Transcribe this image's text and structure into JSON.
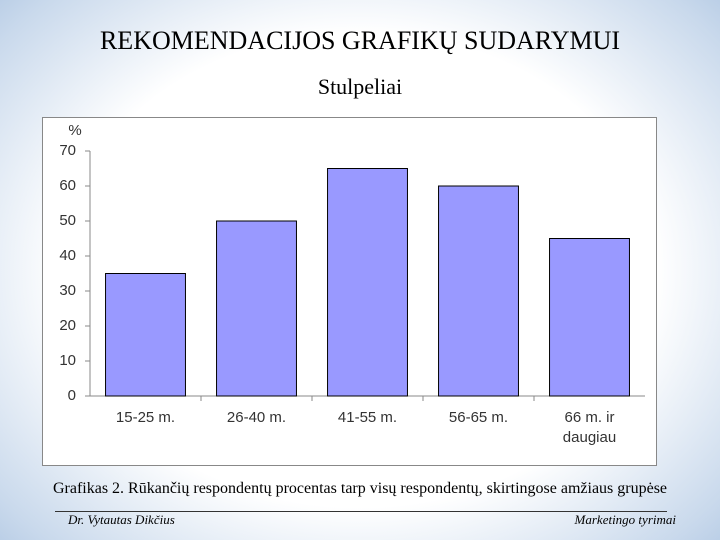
{
  "header": {
    "title": "REKOMENDACIJOS GRAFIKŲ SUDARYMUI",
    "subtitle": "Stulpeliai"
  },
  "chart_data": {
    "type": "bar",
    "y_label": "%",
    "categories": [
      "15-25 m.",
      "26-40 m.",
      "41-55 m.",
      "56-65 m.",
      "66 m. ir daugiau"
    ],
    "values": [
      35,
      50,
      65,
      60,
      45
    ],
    "color": "#9999ff",
    "ylim": [
      0,
      70
    ],
    "yticks": [
      0,
      10,
      20,
      30,
      40,
      50,
      60,
      70
    ],
    "grid": false
  },
  "caption": "Grafikas 2. Rūkančių respondentų procentas tarp visų respondentų, skirtingose amžiaus grupėse",
  "footer": {
    "left": "Dr. Vytautas Dikčius",
    "right": "Marketingo tyrimai"
  }
}
